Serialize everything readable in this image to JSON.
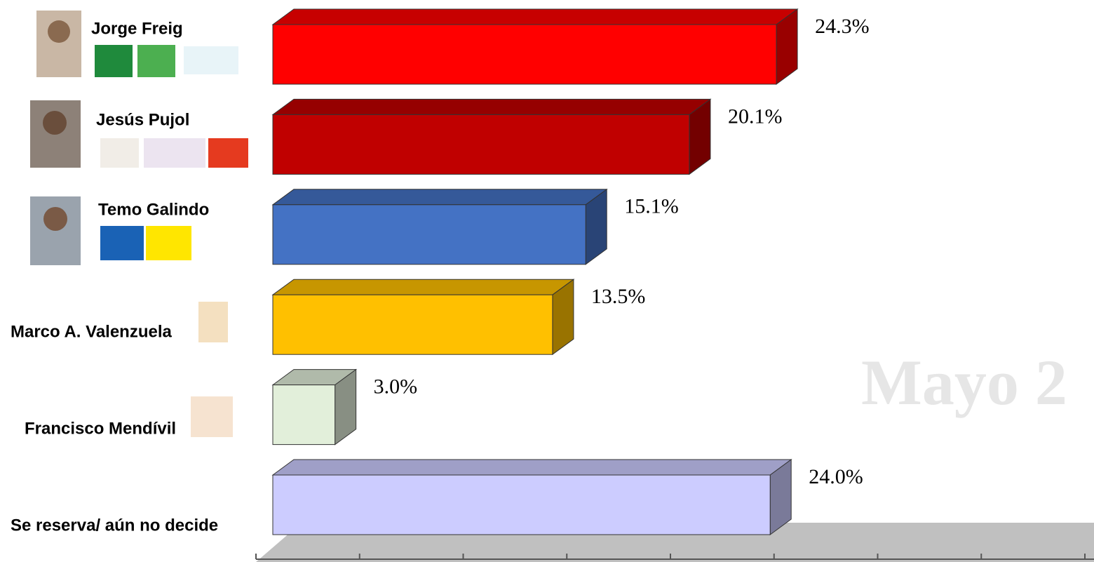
{
  "chart_data": {
    "type": "bar3d-horizontal",
    "categories": [
      "Jorge Freig",
      "Jesús Pujol",
      "Temo Galindo",
      "Marco A. Valenzuela",
      "Francisco Mendívil",
      "Se reserva/ aún no decide"
    ],
    "values": [
      24.3,
      20.1,
      15.1,
      13.5,
      3.0,
      24.0
    ],
    "value_labels": [
      "24.3%",
      "20.1%",
      "15.1%",
      "13.5%",
      "3.0%",
      "24.0%"
    ],
    "colors": [
      "#ff0000",
      "#c00000",
      "#4472c4",
      "#ffc000",
      "#e2efda",
      "#ccccff"
    ],
    "xlim": [
      0,
      40
    ],
    "xticks": [
      0,
      5,
      10,
      15,
      20,
      25,
      30,
      35,
      40
    ],
    "annotation": "Mayo 2"
  }
}
